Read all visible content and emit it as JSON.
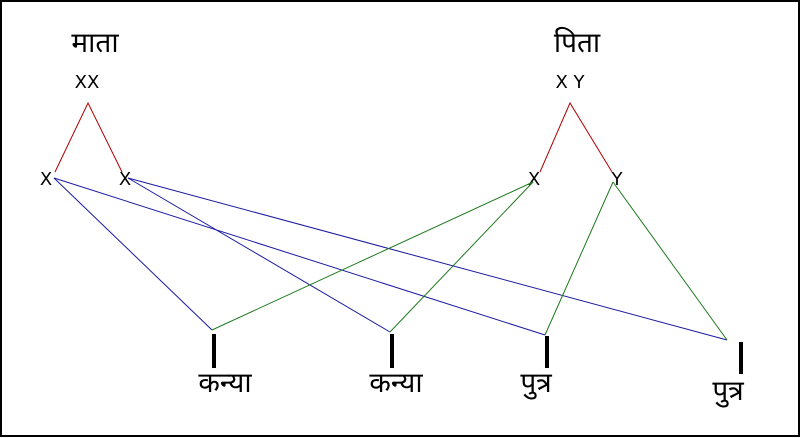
{
  "parents": [
    {
      "label": "माता",
      "genotype": "XX",
      "gametes": [
        "X",
        "X"
      ]
    },
    {
      "label": "पिता",
      "genotype": "X Y",
      "gametes": [
        "X",
        "Y"
      ]
    }
  ],
  "children": [
    "कन्या",
    "कन्या",
    "पुत्र",
    "पुत्र"
  ]
}
